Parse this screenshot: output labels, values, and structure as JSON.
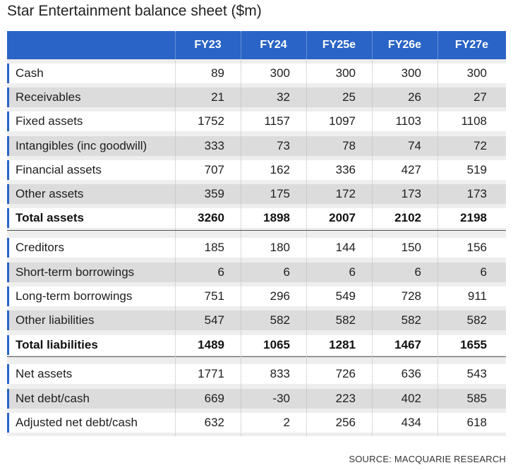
{
  "title": "Star Entertainment balance sheet ($m)",
  "columns": [
    "FY23",
    "FY24",
    "FY25e",
    "FY26e",
    "FY27e"
  ],
  "rows": [
    {
      "label": "Cash",
      "values": [
        "89",
        "300",
        "300",
        "300",
        "300"
      ]
    },
    {
      "label": "Receivables",
      "values": [
        "21",
        "32",
        "25",
        "26",
        "27"
      ]
    },
    {
      "label": "Fixed assets",
      "values": [
        "1752",
        "1157",
        "1097",
        "1103",
        "1108"
      ]
    },
    {
      "label": "Intangibles (inc goodwill)",
      "values": [
        "333",
        "73",
        "78",
        "74",
        "72"
      ]
    },
    {
      "label": "Financial assets",
      "values": [
        "707",
        "162",
        "336",
        "427",
        "519"
      ]
    },
    {
      "label": "Other assets",
      "values": [
        "359",
        "175",
        "172",
        "173",
        "173"
      ]
    },
    {
      "label": "Total assets",
      "values": [
        "3260",
        "1898",
        "2007",
        "2102",
        "2198"
      ]
    },
    {
      "label": "Creditors",
      "values": [
        "185",
        "180",
        "144",
        "150",
        "156"
      ]
    },
    {
      "label": "Short-term borrowings",
      "values": [
        "6",
        "6",
        "6",
        "6",
        "6"
      ]
    },
    {
      "label": "Long-term borrowings",
      "values": [
        "751",
        "296",
        "549",
        "728",
        "911"
      ]
    },
    {
      "label": "Other liabilities",
      "values": [
        "547",
        "582",
        "582",
        "582",
        "582"
      ]
    },
    {
      "label": "Total liabilities",
      "values": [
        "1489",
        "1065",
        "1281",
        "1467",
        "1655"
      ]
    },
    {
      "label": "Net assets",
      "values": [
        "1771",
        "833",
        "726",
        "636",
        "543"
      ]
    },
    {
      "label": "Net debt/cash",
      "values": [
        "669",
        "-30",
        "223",
        "402",
        "585"
      ]
    },
    {
      "label": "Adjusted net debt/cash",
      "values": [
        "632",
        "2",
        "256",
        "434",
        "618"
      ]
    }
  ],
  "source": "SOURCE: MACQUARIE RESEARCH",
  "colors": {
    "header": "#2a64c6",
    "row_white": "#ffffff",
    "row_gray": "#dcdcdc",
    "panel": "#eeeeee"
  }
}
